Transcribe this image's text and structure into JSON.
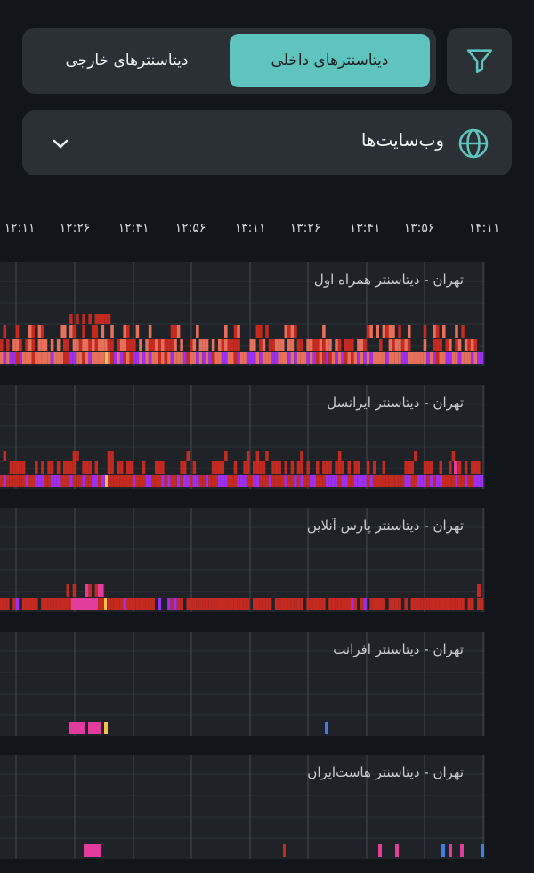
{
  "tabs": {
    "active_label": "دیتاسنترهای داخلی",
    "inactive_label": "دیتاسنترهای خارجی"
  },
  "filter": {
    "icon": "filter-icon"
  },
  "dropdown": {
    "label": "وب‌سایت‌ها",
    "icon": "globe-icon",
    "chevron": "chevron-down-icon"
  },
  "timeline": {
    "ticks": [
      "۱۲:۱۱",
      "۱۲:۲۶",
      "۱۲:۴۱",
      "۱۲:۵۶",
      "۱۳:۱۱",
      "۱۳:۲۶",
      "۱۳:۴۱",
      "۱۳:۵۶",
      "۱۴:۱۱"
    ]
  },
  "colors": {
    "accent": "#5fc4bd",
    "purple": "#9b30f0",
    "salmon": "#e8705a",
    "red": "#c42a20",
    "pink": "#e23d9c",
    "yellow": "#f3c04b",
    "blue": "#3f80e8"
  },
  "datacenters": [
    {
      "name": "تهران - دیتاسنتر همراه اول"
    },
    {
      "name": "تهران - دیتاسنتر ایرانسل"
    },
    {
      "name": "تهران - دیتاسنتر پارس آنلاین"
    },
    {
      "name": "تهران - دیتاسنتر افرانت"
    },
    {
      "name": "تهران - دیتاسنتر هاست‌ایران"
    }
  ]
}
